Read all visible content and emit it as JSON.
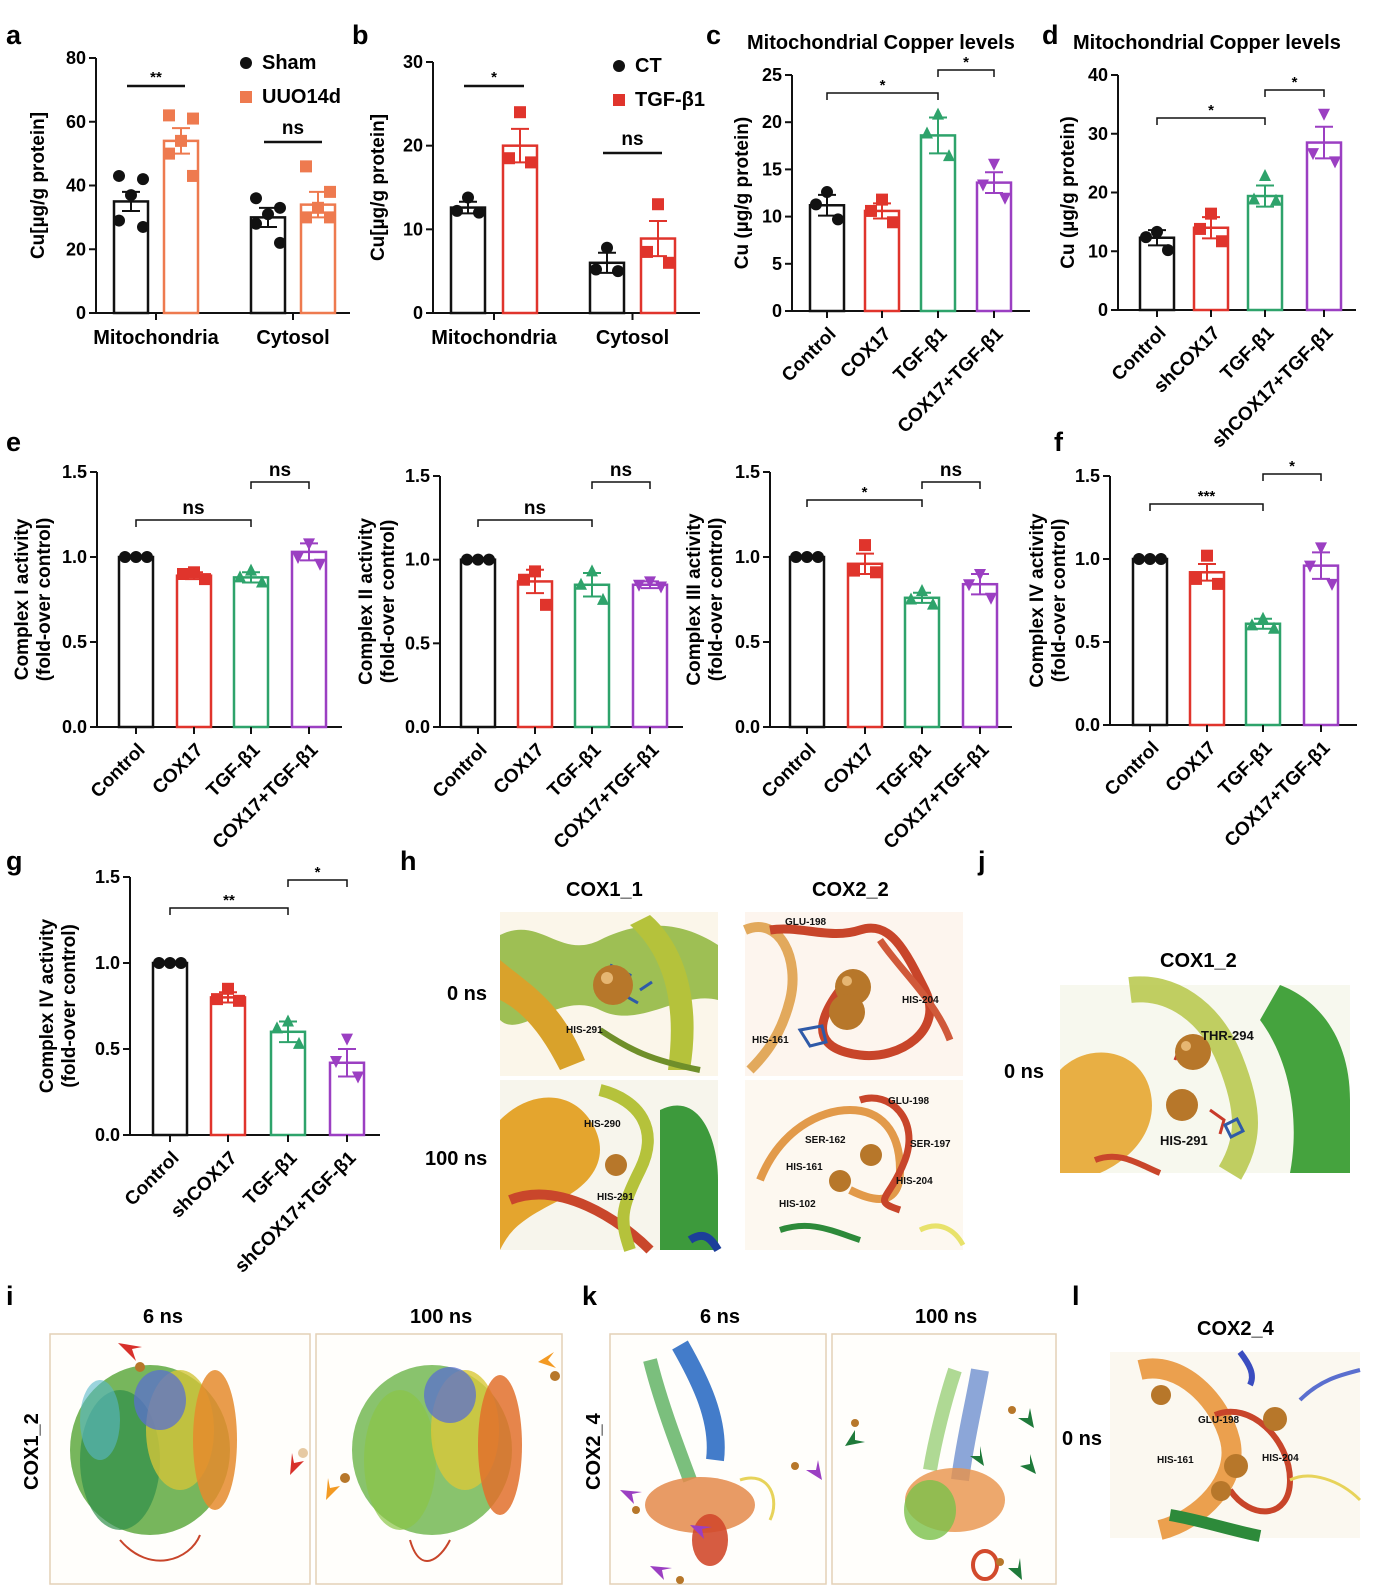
{
  "panels": {
    "a": {
      "letter": "a",
      "chart_data": {
        "type": "bar",
        "ylabel": "Cu[µg/g protein]",
        "ylim": [
          0,
          80
        ],
        "yticks": [
          0,
          20,
          40,
          60,
          80
        ],
        "categories": [
          "Mitochondria",
          "Cytosol"
        ],
        "series": [
          {
            "name": "Sham",
            "color": "#111111",
            "marker": "circle",
            "values": [
              35,
              30
            ],
            "sem": [
              3,
              3
            ],
            "points": [
              [
                43,
                42,
                37,
                29,
                27
              ],
              [
                36,
                33,
                31,
                28,
                22
              ]
            ]
          },
          {
            "name": "UUO14d",
            "color": "#ee7a4f",
            "marker": "square",
            "values": [
              54,
              34
            ],
            "sem": [
              4,
              4
            ],
            "points": [
              [
                62,
                61,
                54,
                50,
                43
              ],
              [
                46,
                38,
                33,
                30,
                30
              ]
            ]
          }
        ],
        "comparisons": [
          {
            "group": 0,
            "label": "**"
          },
          {
            "group": 1,
            "label": "ns"
          }
        ]
      }
    },
    "b": {
      "letter": "b",
      "chart_data": {
        "type": "bar",
        "ylabel": "Cu[µg/g protein]",
        "ylim": [
          0,
          30
        ],
        "yticks": [
          0,
          10,
          20,
          30
        ],
        "categories": [
          "Mitochondria",
          "Cytosol"
        ],
        "series": [
          {
            "name": "CT",
            "color": "#111111",
            "marker": "circle",
            "values": [
              12.6,
              6.0
            ],
            "sem": [
              0.7,
              1.2
            ],
            "points": [
              [
                13.8,
                12.2,
                12.0
              ],
              [
                7.8,
                5.2,
                5.0
              ]
            ]
          },
          {
            "name": "TGF-β1",
            "color": "#e0342c",
            "marker": "square",
            "values": [
              20.0,
              8.9
            ],
            "sem": [
              2.0,
              2.1
            ],
            "points": [
              [
                24,
                18.5,
                18.0
              ],
              [
                13,
                7.3,
                6.0
              ]
            ]
          }
        ],
        "comparisons": [
          {
            "group": 0,
            "label": "*"
          },
          {
            "group": 1,
            "label": "ns"
          }
        ]
      }
    },
    "c": {
      "letter": "c",
      "chart_data": {
        "type": "bar",
        "title": "Mitochondrial Copper levels",
        "ylabel": "Cu (µg/g protein)",
        "ylim": [
          0,
          25
        ],
        "yticks": [
          0,
          5,
          10,
          15,
          20,
          25
        ],
        "categories": [
          "Control",
          "COX17",
          "TGF-β1",
          "COX17+TGF-β1"
        ],
        "values": [
          11.2,
          10.6,
          18.6,
          13.6
        ],
        "sem": [
          1.1,
          0.8,
          1.9,
          1.1
        ],
        "points": [
          [
            12.6,
            11.3,
            9.7
          ],
          [
            11.8,
            10.6,
            9.4
          ],
          [
            20.8,
            18.8,
            16.4
          ],
          [
            15.6,
            13.4,
            12.0
          ]
        ],
        "comparisons": [
          {
            "from": 0,
            "to": 2,
            "label": "*"
          },
          {
            "from": 2,
            "to": 3,
            "label": "*"
          }
        ]
      }
    },
    "d": {
      "letter": "d",
      "chart_data": {
        "type": "bar",
        "title": "Mitochondrial Copper levels",
        "ylabel": "Cu (µg/g protein)",
        "ylim": [
          0,
          40
        ],
        "yticks": [
          0,
          10,
          20,
          30,
          40
        ],
        "categories": [
          "Control",
          "shCOX17",
          "TGF-β1",
          "shCOX17+TGF-β1"
        ],
        "values": [
          12.3,
          14.0,
          19.4,
          28.5
        ],
        "sem": [
          1.3,
          1.8,
          1.8,
          2.7
        ],
        "points": [
          [
            13.3,
            12.4,
            10.2
          ],
          [
            16.4,
            13.8,
            11.7
          ],
          [
            22.8,
            18.8,
            18.6
          ],
          [
            33.4,
            26.7,
            25.3
          ]
        ],
        "comparisons": [
          {
            "from": 0,
            "to": 2,
            "label": "*"
          },
          {
            "from": 2,
            "to": 3,
            "label": "*"
          }
        ]
      }
    },
    "e1": {
      "letter": "e",
      "chart_data": {
        "type": "bar",
        "ylabel": "Complex I activity (fold-over control)",
        "ylim": [
          0,
          1.5
        ],
        "yticks": [
          0.0,
          0.5,
          1.0,
          1.5
        ],
        "categories": [
          "Control",
          "COX17",
          "TGF-β1",
          "COX17+TGF-β1"
        ],
        "values": [
          1.0,
          0.89,
          0.88,
          1.03
        ],
        "sem": [
          0.0,
          0.02,
          0.03,
          0.05
        ],
        "points": [
          [
            1.0,
            1.0,
            1.0
          ],
          [
            0.91,
            0.9,
            0.87
          ],
          [
            0.92,
            0.88,
            0.85
          ],
          [
            1.08,
            1.0,
            0.96
          ]
        ],
        "comparisons": [
          {
            "from": 0,
            "to": 2,
            "label": "ns"
          },
          {
            "from": 2,
            "to": 3,
            "label": "ns"
          }
        ]
      }
    },
    "e2": {
      "letter": "",
      "chart_data": {
        "type": "bar",
        "ylabel": "Complex II activity (fold-over control)",
        "ylim": [
          0,
          1.5
        ],
        "yticks": [
          0.0,
          0.5,
          1.0,
          1.5
        ],
        "categories": [
          "Control",
          "COX17",
          "TGF-β1",
          "COX17+TGF-β1"
        ],
        "values": [
          1.0,
          0.87,
          0.85,
          0.85
        ],
        "sem": [
          0.0,
          0.07,
          0.07,
          0.02
        ],
        "points": [
          [
            1.0,
            1.0,
            1.0
          ],
          [
            0.93,
            0.88,
            0.73
          ],
          [
            0.93,
            0.85,
            0.76
          ],
          [
            0.87,
            0.85,
            0.84
          ]
        ],
        "comparisons": [
          {
            "from": 0,
            "to": 2,
            "label": "ns"
          },
          {
            "from": 2,
            "to": 3,
            "label": "ns"
          }
        ]
      }
    },
    "e3": {
      "letter": "",
      "chart_data": {
        "type": "bar",
        "ylabel": "Complex III activity (fold-over control)",
        "ylim": [
          0,
          1.5
        ],
        "yticks": [
          0.0,
          0.5,
          1.0,
          1.5
        ],
        "categories": [
          "Control",
          "COX17",
          "TGF-β1",
          "COX17+TGF-β1"
        ],
        "values": [
          1.0,
          0.96,
          0.76,
          0.84
        ],
        "sem": [
          0.0,
          0.06,
          0.03,
          0.06
        ],
        "points": [
          [
            1.0,
            1.0,
            1.0
          ],
          [
            1.07,
            0.92,
            0.91
          ],
          [
            0.8,
            0.75,
            0.72
          ],
          [
            0.9,
            0.84,
            0.76
          ]
        ],
        "comparisons": [
          {
            "from": 0,
            "to": 2,
            "label": "*"
          },
          {
            "from": 2,
            "to": 3,
            "label": "ns"
          }
        ]
      }
    },
    "f": {
      "letter": "f",
      "chart_data": {
        "type": "bar",
        "ylabel": "Complex IV activity (fold-over control)",
        "ylim": [
          0,
          1.5
        ],
        "yticks": [
          0.0,
          0.5,
          1.0,
          1.5
        ],
        "categories": [
          "Control",
          "COX17",
          "TGF-β1",
          "COX17+TGF-β1"
        ],
        "values": [
          1.0,
          0.92,
          0.61,
          0.96
        ],
        "sem": [
          0.0,
          0.05,
          0.03,
          0.08
        ],
        "points": [
          [
            1.0,
            1.0,
            1.0
          ],
          [
            1.02,
            0.88,
            0.85
          ],
          [
            0.64,
            0.6,
            0.58
          ],
          [
            1.07,
            0.96,
            0.85
          ]
        ],
        "comparisons": [
          {
            "from": 0,
            "to": 2,
            "label": "***"
          },
          {
            "from": 2,
            "to": 3,
            "label": "*"
          }
        ]
      }
    },
    "g": {
      "letter": "g",
      "chart_data": {
        "type": "bar",
        "ylabel": "Complex IV activity (fold-over control)",
        "ylim": [
          0,
          1.5
        ],
        "yticks": [
          0.0,
          0.5,
          1.0,
          1.5
        ],
        "categories": [
          "Control",
          "shCOX17",
          "TGF-β1",
          "shCOX17+TGF-β1"
        ],
        "values": [
          1.0,
          0.8,
          0.6,
          0.42
        ],
        "sem": [
          0.0,
          0.03,
          0.06,
          0.08
        ],
        "points": [
          [
            1.0,
            1.0,
            1.0
          ],
          [
            0.85,
            0.79,
            0.78
          ],
          [
            0.66,
            0.62,
            0.53
          ],
          [
            0.56,
            0.43,
            0.34
          ]
        ],
        "comparisons": [
          {
            "from": 0,
            "to": 2,
            "label": "**"
          },
          {
            "from": 2,
            "to": 3,
            "label": "*"
          }
        ]
      }
    }
  },
  "structures": {
    "h": {
      "letter": "h",
      "col_titles": [
        "COX1_1",
        "COX2_2"
      ],
      "row_labels": [
        "0 ns",
        "100 ns"
      ],
      "residues": {
        "cox1_0": [
          "HIS-291"
        ],
        "cox2_0": [
          "GLU-198",
          "HIS-204",
          "HIS-161"
        ],
        "cox1_100": [
          "HIS-290",
          "HIS-291"
        ],
        "cox2_100": [
          "GLU-198",
          "SER-162",
          "SER-197",
          "HIS-161",
          "HIS-204",
          "HIS-102"
        ]
      }
    },
    "j": {
      "letter": "j",
      "title": "COX1_2",
      "row_label": "0 ns",
      "residues": [
        "THR-294",
        "HIS-291"
      ]
    },
    "i": {
      "letter": "i",
      "side_label": "COX1_2",
      "col_titles": [
        "6 ns",
        "100 ns"
      ]
    },
    "k": {
      "letter": "k",
      "side_label": "COX2_4",
      "col_titles": [
        "6 ns",
        "100 ns"
      ]
    },
    "l": {
      "letter": "l",
      "title": "COX2_4",
      "row_label": "0 ns",
      "residues": [
        "GLU-198",
        "HIS-161",
        "HIS-204"
      ]
    }
  },
  "colors": {
    "black": "#111111",
    "orange": "#ee7a4f",
    "red": "#e0342c",
    "green": "#2ea36b",
    "purple": "#9b3fc2"
  }
}
